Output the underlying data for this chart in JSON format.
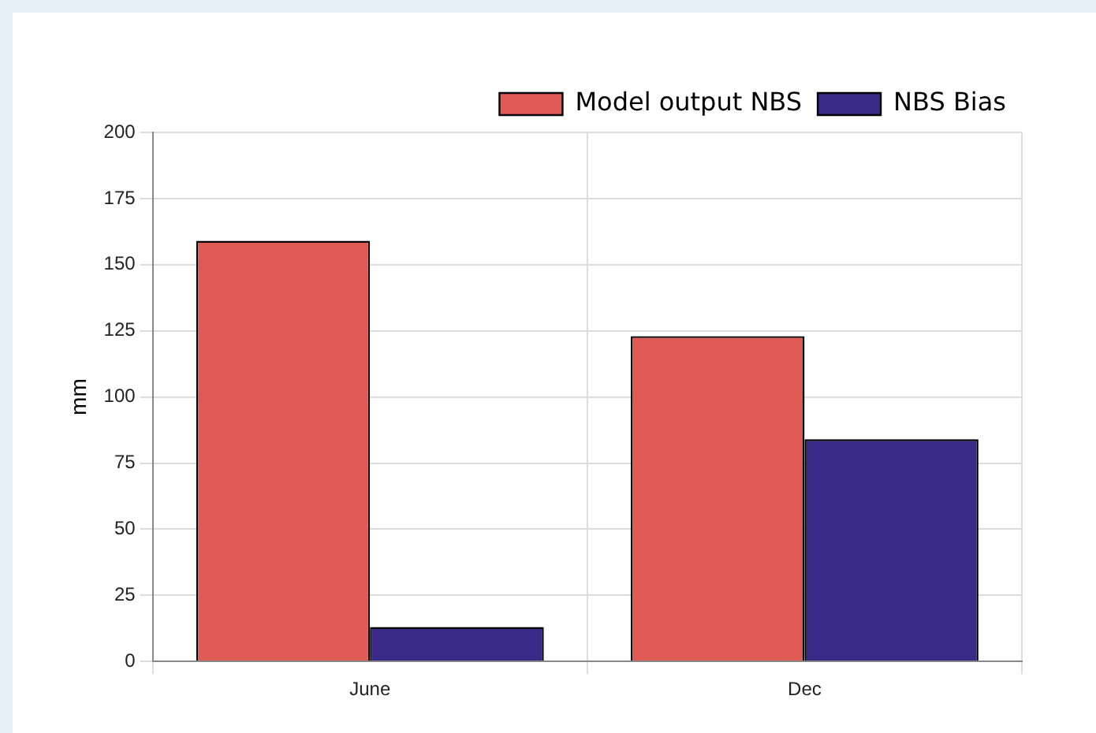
{
  "chart_data": {
    "type": "bar",
    "ylabel": "mm",
    "categories": [
      "June",
      "Dec"
    ],
    "series": [
      {
        "name": "Model output NBS",
        "color": "#e05a55",
        "values": [
          159,
          123
        ]
      },
      {
        "name": "NBS Bias",
        "color": "#3a2a88",
        "values": [
          13,
          84
        ]
      }
    ],
    "ylim": [
      0,
      200
    ],
    "yticks": [
      0,
      25,
      50,
      75,
      100,
      125,
      150,
      175,
      200
    ],
    "grid": true,
    "legend": "top right"
  }
}
